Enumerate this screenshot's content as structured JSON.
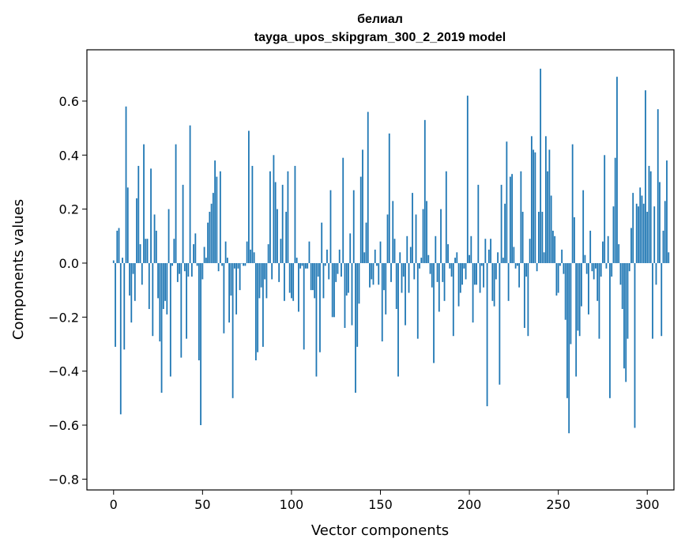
{
  "chart_data": {
    "type": "bar",
    "title": "белиал",
    "subtitle": "tayga_upos_skipgram_300_2_2019 model",
    "xlabel": "Vector components",
    "ylabel": "Components values",
    "xlim": [
      -15,
      315
    ],
    "ylim": [
      -0.84,
      0.79
    ],
    "xticks": [
      0,
      50,
      100,
      150,
      200,
      250,
      300
    ],
    "xtick_labels": [
      "0",
      "50",
      "100",
      "150",
      "200",
      "250",
      "300"
    ],
    "yticks": [
      -0.8,
      -0.6,
      -0.4,
      -0.2,
      0.0,
      0.2,
      0.4,
      0.6
    ],
    "ytick_labels": [
      "−0.8",
      "−0.6",
      "−0.4",
      "−0.2",
      "0.0",
      "0.2",
      "0.4",
      "0.6"
    ],
    "bar_color": "#1f77b4",
    "grid": false,
    "values": [
      0.01,
      -0.31,
      0.12,
      0.13,
      -0.56,
      0.02,
      -0.32,
      0.58,
      0.28,
      -0.12,
      -0.22,
      -0.04,
      -0.14,
      0.24,
      0.36,
      0.07,
      -0.08,
      0.44,
      0.09,
      0.09,
      -0.17,
      0.35,
      -0.27,
      0.18,
      0.12,
      -0.13,
      -0.29,
      -0.48,
      -0.17,
      -0.14,
      -0.19,
      0.2,
      -0.42,
      -0.01,
      0.09,
      0.44,
      -0.07,
      -0.04,
      -0.35,
      0.29,
      -0.03,
      -0.28,
      -0.05,
      0.51,
      -0.05,
      0.07,
      0.11,
      -0.01,
      -0.36,
      -0.6,
      -0.06,
      0.06,
      0.02,
      0.15,
      0.19,
      0.22,
      0.26,
      0.38,
      0.32,
      -0.03,
      0.34,
      -0.01,
      -0.26,
      0.08,
      0.02,
      -0.22,
      -0.12,
      -0.5,
      -0.02,
      -0.19,
      -0.02,
      -0.1,
      0.0,
      -0.01,
      -0.01,
      0.08,
      0.49,
      0.05,
      0.36,
      0.04,
      -0.36,
      -0.33,
      -0.13,
      -0.09,
      -0.31,
      -0.06,
      -0.13,
      0.07,
      0.34,
      -0.06,
      0.4,
      0.3,
      0.2,
      -0.07,
      0.09,
      0.29,
      -0.14,
      0.19,
      0.34,
      -0.11,
      -0.13,
      -0.14,
      0.36,
      0.02,
      -0.18,
      -0.02,
      -0.01,
      -0.32,
      -0.02,
      -0.02,
      0.08,
      -0.1,
      -0.1,
      -0.13,
      -0.42,
      -0.05,
      -0.33,
      0.15,
      -0.13,
      -0.01,
      0.05,
      -0.06,
      0.27,
      -0.2,
      -0.2,
      -0.07,
      -0.04,
      0.05,
      -0.05,
      0.39,
      -0.24,
      -0.12,
      -0.11,
      0.11,
      -0.23,
      0.27,
      -0.48,
      -0.31,
      -0.15,
      0.32,
      0.42,
      0.04,
      0.15,
      0.56,
      -0.09,
      -0.06,
      -0.08,
      0.05,
      -0.01,
      -0.08,
      0.08,
      -0.29,
      -0.1,
      -0.19,
      0.18,
      0.48,
      -0.07,
      0.23,
      0.09,
      -0.17,
      -0.42,
      0.04,
      -0.11,
      -0.05,
      -0.23,
      0.1,
      -0.11,
      0.06,
      0.26,
      -0.06,
      0.18,
      -0.28,
      -0.02,
      0.02,
      0.2,
      0.53,
      0.23,
      0.03,
      -0.04,
      -0.09,
      -0.37,
      0.1,
      -0.07,
      -0.18,
      0.2,
      -0.07,
      -0.14,
      0.34,
      0.07,
      -0.02,
      -0.05,
      -0.27,
      0.02,
      0.04,
      -0.16,
      -0.11,
      -0.08,
      -0.02,
      -0.06,
      0.62,
      0.03,
      0.1,
      -0.22,
      -0.08,
      -0.08,
      0.29,
      -0.11,
      -0.01,
      -0.09,
      0.09,
      -0.53,
      0.05,
      0.09,
      -0.14,
      -0.16,
      -0.06,
      0.04,
      -0.45,
      0.29,
      0.02,
      0.22,
      0.45,
      -0.14,
      0.32,
      0.33,
      0.06,
      -0.02,
      -0.01,
      -0.09,
      0.34,
      0.19,
      -0.24,
      -0.05,
      -0.27,
      0.09,
      0.47,
      0.42,
      0.41,
      -0.03,
      0.19,
      0.72,
      0.19,
      0.04,
      0.47,
      0.34,
      0.42,
      0.25,
      0.12,
      0.1,
      -0.12,
      -0.11,
      -0.01,
      0.05,
      -0.04,
      -0.21,
      -0.5,
      -0.63,
      -0.3,
      0.44,
      0.17,
      -0.42,
      -0.25,
      -0.27,
      -0.16,
      0.27,
      0.03,
      -0.04,
      -0.19,
      0.12,
      -0.03,
      -0.06,
      -0.02,
      -0.14,
      -0.28,
      -0.05,
      0.08,
      0.4,
      -0.02,
      0.1,
      -0.5,
      -0.05,
      0.21,
      0.39,
      0.69,
      0.07,
      -0.08,
      -0.17,
      -0.39,
      -0.44,
      -0.28,
      -0.03,
      0.13,
      0.26,
      -0.61,
      0.22,
      0.21,
      0.28,
      0.25,
      0.22,
      0.64,
      0.19,
      0.36,
      0.34,
      -0.28,
      0.21,
      -0.08,
      0.57,
      0.3,
      -0.27,
      0.12,
      0.23,
      0.38,
      0.04
    ]
  }
}
